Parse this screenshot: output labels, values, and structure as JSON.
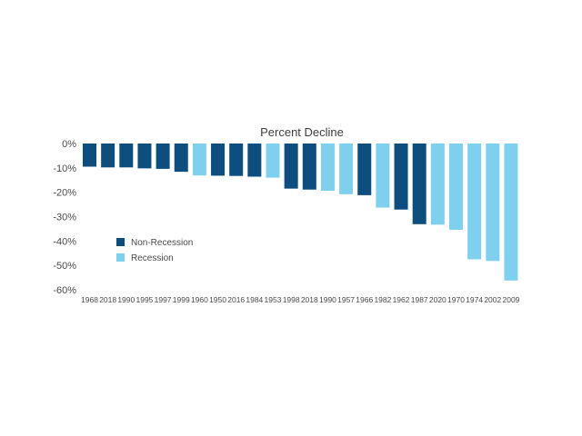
{
  "chart_data": {
    "type": "bar",
    "title": "Percent Decline",
    "xlabel": "",
    "ylabel": "",
    "ylim": [
      -60,
      0
    ],
    "yticks": [
      0,
      -10,
      -20,
      -30,
      -40,
      -50,
      -60
    ],
    "ytick_labels": [
      "0%",
      "-10%",
      "-20%",
      "-30%",
      "-40%",
      "-50%",
      "-60%"
    ],
    "grid": false,
    "legend_position": "left-middle",
    "categories": [
      "1968",
      "2018",
      "1990",
      "1995",
      "1997",
      "1999",
      "1960",
      "1950",
      "2016",
      "1984",
      "1953",
      "1998",
      "2018",
      "1990",
      "1957",
      "1966",
      "1982",
      "1962",
      "1987",
      "2020",
      "1970",
      "1974",
      "2002",
      "2009"
    ],
    "values": [
      -9.5,
      -9.8,
      -9.8,
      -10.2,
      -10.4,
      -11.6,
      -13.1,
      -13.2,
      -13.3,
      -13.6,
      -14.0,
      -18.5,
      -18.9,
      -19.4,
      -20.8,
      -21.2,
      -26.3,
      -27.1,
      -33.1,
      -33.3,
      -35.4,
      -47.5,
      -48.2,
      -56.2
    ],
    "recession": [
      false,
      false,
      false,
      false,
      false,
      false,
      true,
      false,
      false,
      false,
      true,
      false,
      false,
      true,
      true,
      false,
      true,
      false,
      false,
      true,
      true,
      true,
      true,
      true
    ],
    "series": [
      {
        "name": "Non-Recession",
        "color": "#0e4e7f"
      },
      {
        "name": "Recession",
        "color": "#7fd0ee"
      }
    ]
  }
}
